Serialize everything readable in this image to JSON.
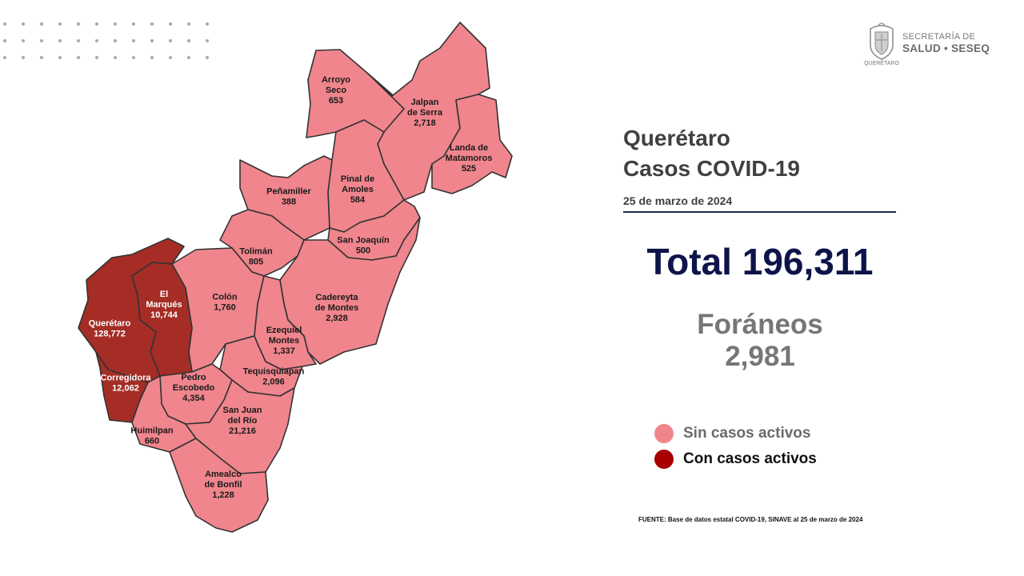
{
  "header": {
    "title_line1": "Querétaro",
    "title_line2": "Casos COVID-19",
    "date": "25 de marzo de 2024"
  },
  "logo": {
    "line1": "SECRETARÍA DE",
    "line2": "SALUD • SESEQ",
    "line3": "QUERÉTARO"
  },
  "summary": {
    "total_text": "Total 196,311",
    "total": 196311,
    "foraneos_label": "Foráneos",
    "foraneos_value": "2,981"
  },
  "legend": [
    {
      "label": "Sin casos activos",
      "color": "#f0858d",
      "text_color": "#6b6b6b"
    },
    {
      "label": "Con casos activos",
      "color": "#a80000",
      "text_color": "#111111"
    }
  ],
  "source": "FUENTE: Base de datos estatal COVID-19, SINAVE al 25 de marzo de 2024",
  "colors": {
    "inactive": "#f0858d",
    "active": "#a52d26",
    "border": "#333333",
    "title": "#404040",
    "total": "#0d1449"
  },
  "municipalities": [
    {
      "id": "arroyo-seco",
      "name_lines": [
        "Arroyo",
        "Seco"
      ],
      "cases": "653",
      "active": false
    },
    {
      "id": "jalpan",
      "name_lines": [
        "Jalpan",
        "de Serra"
      ],
      "cases": "2,718",
      "active": false
    },
    {
      "id": "landa",
      "name_lines": [
        "Landa de",
        "Matamoros"
      ],
      "cases": "525",
      "active": false
    },
    {
      "id": "pinal",
      "name_lines": [
        "Pinal de",
        "Amoles"
      ],
      "cases": "584",
      "active": false
    },
    {
      "id": "penamiller",
      "name_lines": [
        "Peñamiller"
      ],
      "cases": "388",
      "active": false
    },
    {
      "id": "san-joaquin",
      "name_lines": [
        "San Joaquín"
      ],
      "cases": "500",
      "active": false
    },
    {
      "id": "toliman",
      "name_lines": [
        "Tolimán"
      ],
      "cases": "805",
      "active": false
    },
    {
      "id": "cadereyta",
      "name_lines": [
        "Cadereyta",
        "de Montes"
      ],
      "cases": "2,928",
      "active": false
    },
    {
      "id": "colon",
      "name_lines": [
        "Colón"
      ],
      "cases": "1,760",
      "active": false
    },
    {
      "id": "el-marques",
      "name_lines": [
        "El",
        "Marqués"
      ],
      "cases": "10,744",
      "active": true
    },
    {
      "id": "queretaro",
      "name_lines": [
        "Querétaro"
      ],
      "cases": "128,772",
      "active": true
    },
    {
      "id": "ezequiel-montes",
      "name_lines": [
        "Ezequiel",
        "Montes"
      ],
      "cases": "1,337",
      "active": false
    },
    {
      "id": "tequisquiapan",
      "name_lines": [
        "Tequisquiapan"
      ],
      "cases": "2,096",
      "active": false
    },
    {
      "id": "corregidora",
      "name_lines": [
        "Corregidora"
      ],
      "cases": "12,062",
      "active": true
    },
    {
      "id": "pedro-escobedo",
      "name_lines": [
        "Pedro",
        "Escobedo"
      ],
      "cases": "4,354",
      "active": false
    },
    {
      "id": "huimilpan",
      "name_lines": [
        "Huimilpan"
      ],
      "cases": "660",
      "active": false
    },
    {
      "id": "san-juan-del-rio",
      "name_lines": [
        "San Juan",
        "del Río"
      ],
      "cases": "21,216",
      "active": false
    },
    {
      "id": "amealco",
      "name_lines": [
        "Amealco",
        "de Bonfil"
      ],
      "cases": "1,228",
      "active": false
    }
  ]
}
